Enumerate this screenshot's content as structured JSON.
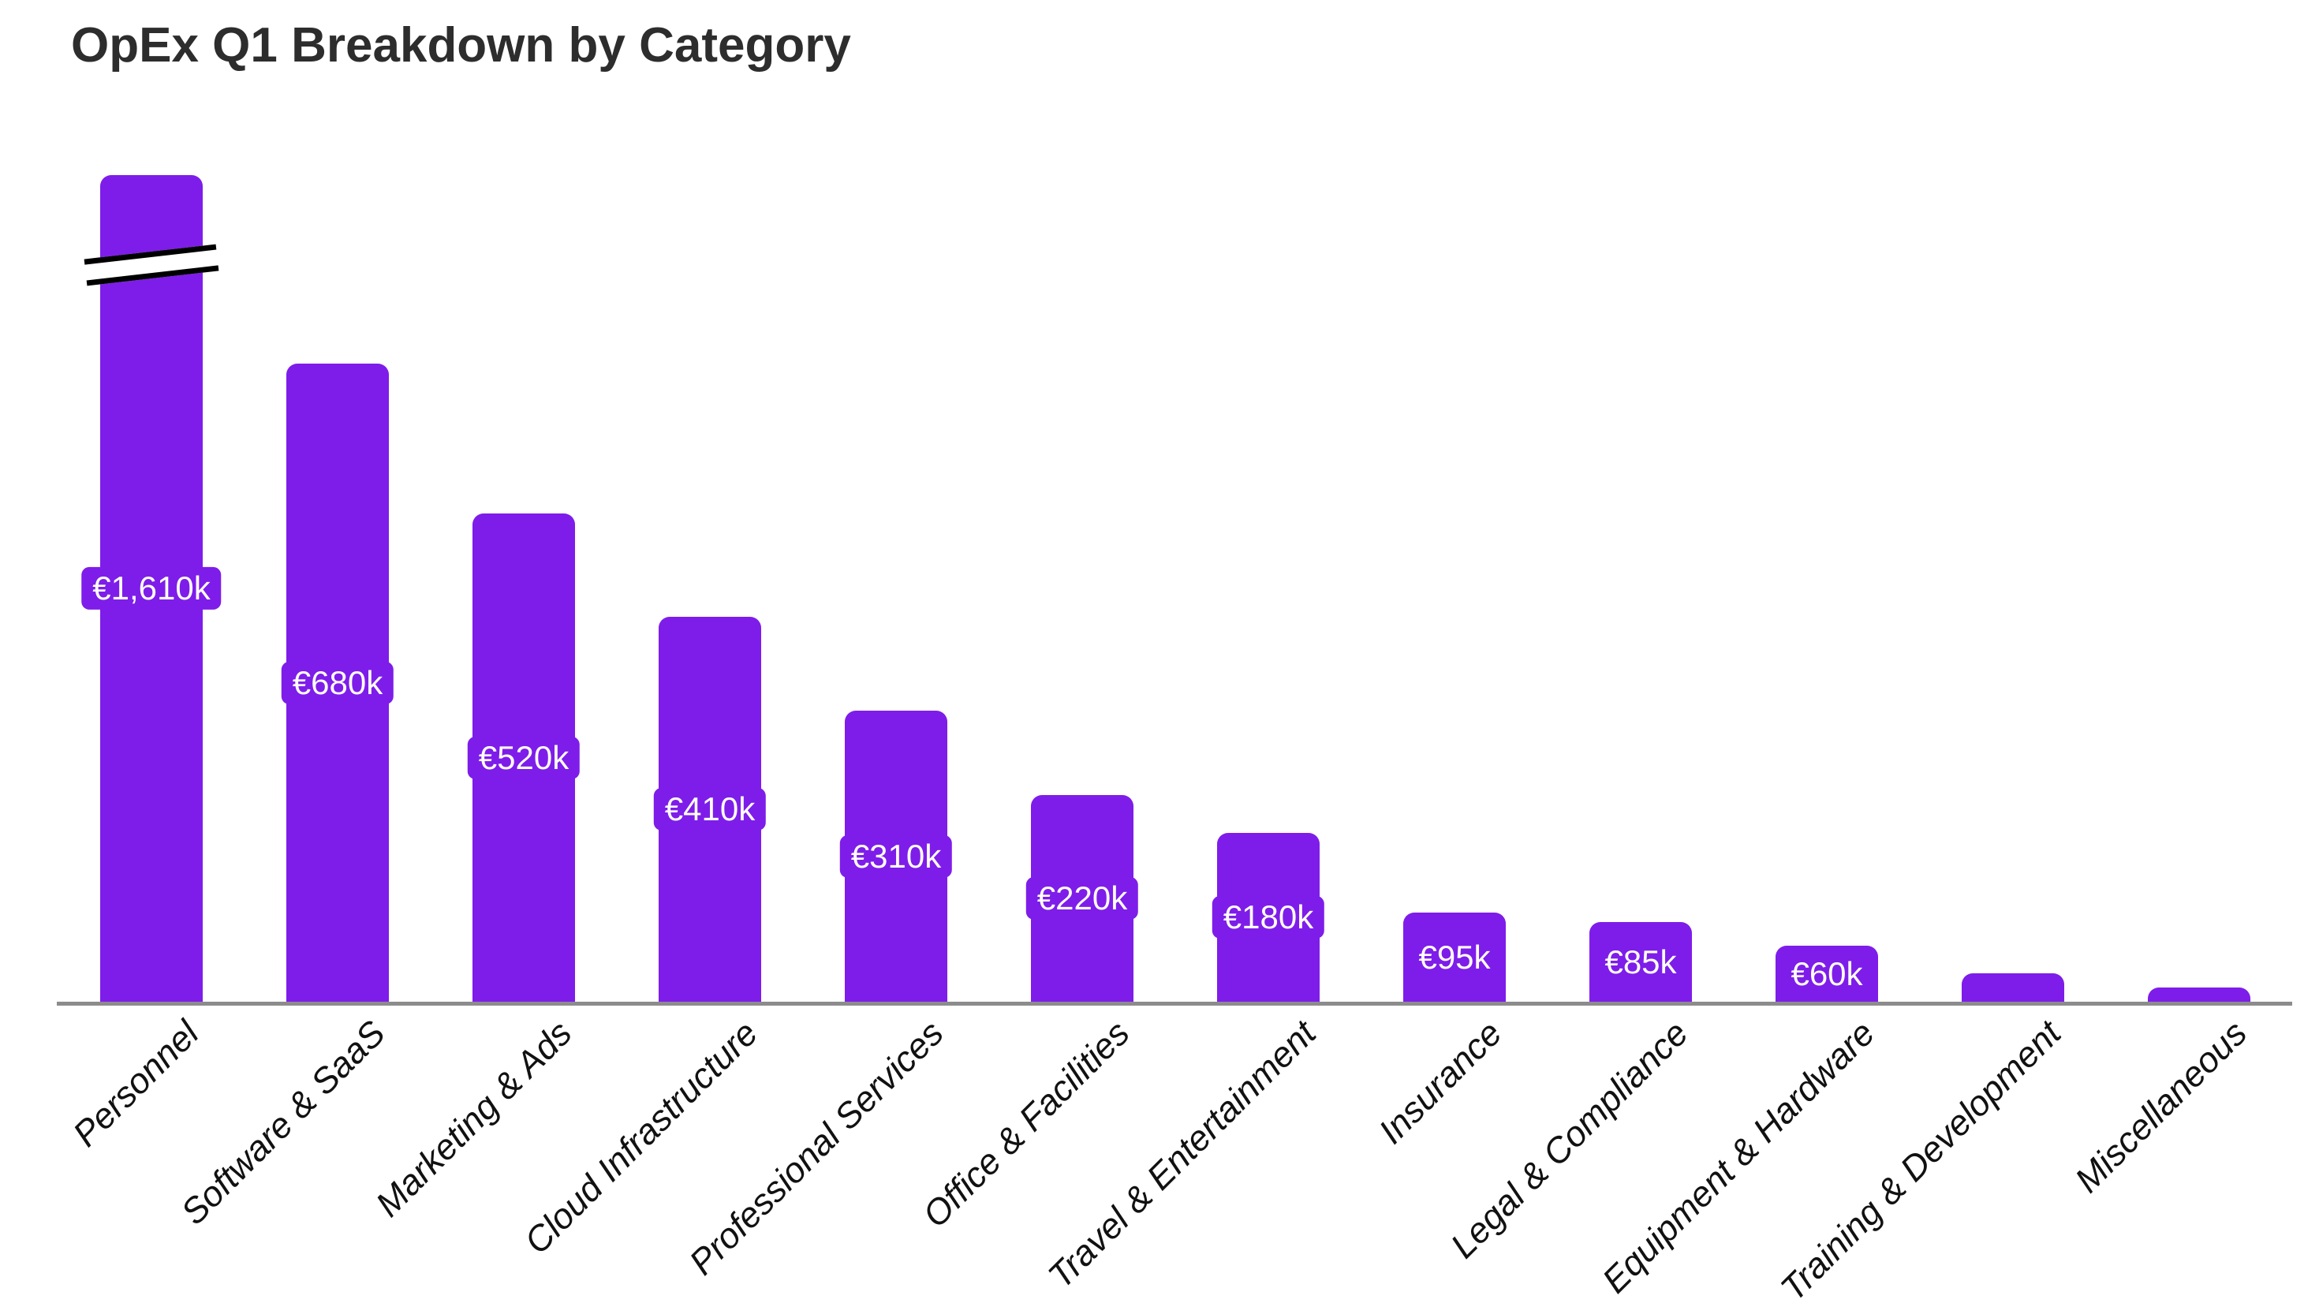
{
  "page": {
    "background_color": "#ffffff"
  },
  "chart_data": {
    "type": "bar",
    "title": "OpEx Q1 Breakdown by Category",
    "categories": [
      "Personnel",
      "Software & SaaS",
      "Marketing & Ads",
      "Cloud Infrastructure",
      "Professional Services",
      "Office & Facilities",
      "Travel & Entertainment",
      "Insurance",
      "Legal & Compliance",
      "Equipment & Hardware",
      "Training & Development",
      "Miscellaneous"
    ],
    "values": [
      1610,
      680,
      520,
      410,
      310,
      220,
      180,
      95,
      85,
      60,
      30,
      15
    ],
    "unit": "EUR thousands",
    "data_labels": [
      "€1,610k",
      "€680k",
      "€520k",
      "€410k",
      "€310k",
      "€220k",
      "€180k",
      "€95k",
      "€85k",
      "€60k",
      "",
      ""
    ],
    "xlabel": "",
    "ylabel": "",
    "grid": false,
    "legend": false,
    "axis_break": {
      "category": "Personnel",
      "note": "tallest bar truncated with double diagonal break marks"
    },
    "colors": {
      "bar": "#7E1DE9",
      "value_label_text": "#ffffff",
      "value_label_badge": "#7E1DE9",
      "axis_line": "#8c8c8c",
      "title_text": "#2d2d2d",
      "tick_label_text": "#111111",
      "break_mark_line": "#000000",
      "break_mark_gap": "#ffffff"
    }
  }
}
